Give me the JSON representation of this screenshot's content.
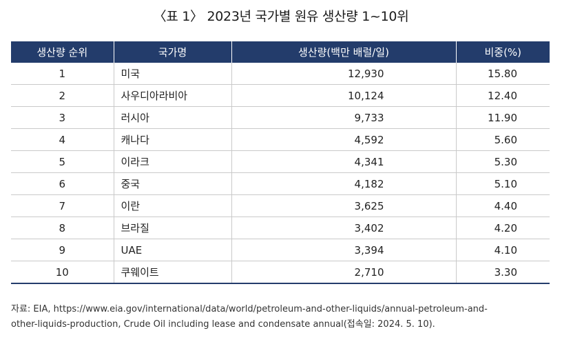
{
  "title": "〈표 1〉 2023년 국가별 원유 생산량 1~10위",
  "table": {
    "headers": [
      "생산량 순위",
      "국가명",
      "생산량(백만 배럴/일)",
      "비중(%)"
    ],
    "rows": [
      {
        "rank": "1",
        "country": "미국",
        "production": "12,930",
        "share": "15.80"
      },
      {
        "rank": "2",
        "country": "사우디아라비아",
        "production": "10,124",
        "share": "12.40"
      },
      {
        "rank": "3",
        "country": "러시아",
        "production": "9,733",
        "share": "11.90"
      },
      {
        "rank": "4",
        "country": "캐나다",
        "production": "4,592",
        "share": "5.60"
      },
      {
        "rank": "5",
        "country": "이라크",
        "production": "4,341",
        "share": "5.30"
      },
      {
        "rank": "6",
        "country": "중국",
        "production": "4,182",
        "share": "5.10"
      },
      {
        "rank": "7",
        "country": "이란",
        "production": "3,625",
        "share": "4.40"
      },
      {
        "rank": "8",
        "country": "브라질",
        "production": "3,402",
        "share": "4.20"
      },
      {
        "rank": "9",
        "country": "UAE",
        "production": "3,394",
        "share": "4.10"
      },
      {
        "rank": "10",
        "country": "쿠웨이트",
        "production": "2,710",
        "share": "3.30"
      }
    ]
  },
  "source": {
    "line1": "자료: EIA, https://www.eia.gov/international/data/world/petroleum-and-other-liquids/annual-petroleum-and-",
    "line2": "other-liquids-production, Crude Oil including lease and condensate annual(접속일: 2024. 5. 10)."
  },
  "colors": {
    "header_bg": "#233c6b",
    "header_text": "#ffffff",
    "grid": "#c9c9c9"
  }
}
